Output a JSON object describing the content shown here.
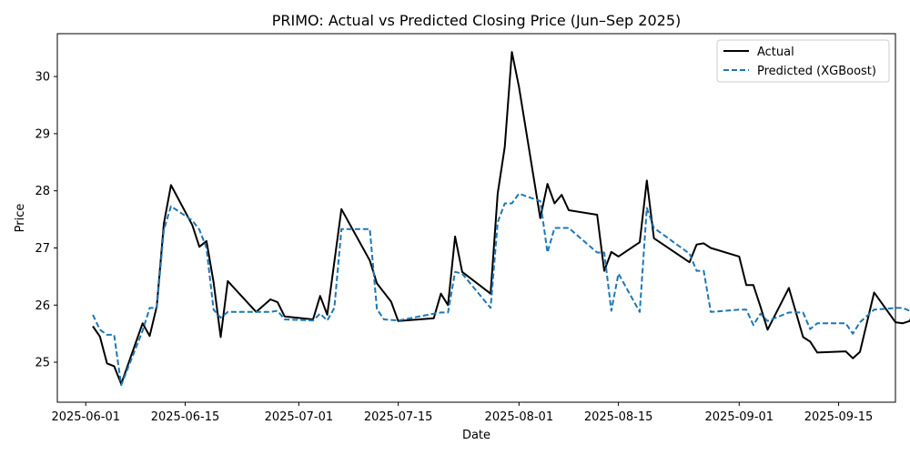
{
  "chart_data": {
    "type": "line",
    "title": "PRIMO: Actual vs Predicted Closing Price (Jun–Sep 2025)",
    "xlabel": "Date",
    "ylabel": "Price",
    "x_tick_labels": [
      "2025-06-01",
      "2025-06-15",
      "2025-07-01",
      "2025-07-15",
      "2025-08-01",
      "2025-08-15",
      "2025-09-01",
      "2025-09-15"
    ],
    "y_tick_labels": [
      "25",
      "26",
      "27",
      "28",
      "29",
      "30"
    ],
    "ylim": [
      24.3,
      30.75
    ],
    "xlim": [
      "2025-05-28",
      "2025-09-23"
    ],
    "grid": false,
    "legend_position": "top-right",
    "colors": {
      "actual": "#000000",
      "predicted": "#1f77b4"
    },
    "series": [
      {
        "name": "Actual",
        "style": "solid",
        "points": [
          [
            "2025-06-02",
            25.63
          ],
          [
            "2025-06-03",
            25.45
          ],
          [
            "2025-06-04",
            24.98
          ],
          [
            "2025-06-05",
            24.93
          ],
          [
            "2025-06-06",
            24.62
          ],
          [
            "2025-06-09",
            25.68
          ],
          [
            "2025-06-10",
            25.46
          ],
          [
            "2025-06-11",
            25.98
          ],
          [
            "2025-06-12",
            27.43
          ],
          [
            "2025-06-13",
            28.1
          ],
          [
            "2025-06-16",
            27.4
          ],
          [
            "2025-06-17",
            27.02
          ],
          [
            "2025-06-18",
            27.12
          ],
          [
            "2025-06-19",
            26.4
          ],
          [
            "2025-06-20",
            25.44
          ],
          [
            "2025-06-21",
            26.42
          ],
          [
            "2025-06-25",
            25.88
          ],
          [
            "2025-06-27",
            26.1
          ],
          [
            "2025-06-28",
            26.05
          ],
          [
            "2025-06-29",
            25.8
          ],
          [
            "2025-07-03",
            25.75
          ],
          [
            "2025-07-04",
            26.16
          ],
          [
            "2025-07-05",
            25.83
          ],
          [
            "2025-07-07",
            27.68
          ],
          [
            "2025-07-11",
            26.78
          ],
          [
            "2025-07-12",
            26.38
          ],
          [
            "2025-07-14",
            26.06
          ],
          [
            "2025-07-15",
            25.72
          ],
          [
            "2025-07-20",
            25.77
          ],
          [
            "2025-07-21",
            26.2
          ],
          [
            "2025-07-22",
            26.0
          ],
          [
            "2025-07-23",
            27.2
          ],
          [
            "2025-07-24",
            26.58
          ],
          [
            "2025-07-28",
            26.2
          ],
          [
            "2025-07-29",
            27.95
          ],
          [
            "2025-07-30",
            28.77
          ],
          [
            "2025-07-31",
            30.43
          ],
          [
            "2025-08-01",
            29.82
          ],
          [
            "2025-08-04",
            27.52
          ],
          [
            "2025-08-05",
            28.12
          ],
          [
            "2025-08-06",
            27.78
          ],
          [
            "2025-08-07",
            27.93
          ],
          [
            "2025-08-08",
            27.66
          ],
          [
            "2025-08-12",
            27.58
          ],
          [
            "2025-08-13",
            26.6
          ],
          [
            "2025-08-14",
            26.93
          ],
          [
            "2025-08-15",
            26.85
          ],
          [
            "2025-08-18",
            27.1
          ],
          [
            "2025-08-19",
            28.18
          ],
          [
            "2025-08-20",
            27.17
          ],
          [
            "2025-08-25",
            26.75
          ],
          [
            "2025-08-26",
            27.06
          ],
          [
            "2025-08-27",
            27.08
          ],
          [
            "2025-08-28",
            27.0
          ],
          [
            "2025-09-01",
            26.85
          ],
          [
            "2025-09-02",
            26.35
          ],
          [
            "2025-09-03",
            26.35
          ],
          [
            "2025-09-04",
            25.97
          ],
          [
            "2025-09-05",
            25.57
          ],
          [
            "2025-09-08",
            26.3
          ],
          [
            "2025-09-10",
            25.44
          ],
          [
            "2025-09-11",
            25.36
          ],
          [
            "2025-09-12",
            25.17
          ],
          [
            "2025-09-16",
            25.19
          ],
          [
            "2025-09-17",
            25.07
          ],
          [
            "2025-09-18",
            25.18
          ],
          [
            "2025-09-20",
            26.22
          ],
          [
            "2025-09-23",
            25.7
          ],
          [
            "2025-09-24",
            25.68
          ],
          [
            "2025-09-25",
            25.72
          ],
          [
            "2025-09-26",
            25.95
          ]
        ]
      },
      {
        "name": "Predicted (XGBoost)",
        "style": "dashed",
        "points": [
          [
            "2025-06-02",
            25.83
          ],
          [
            "2025-06-03",
            25.57
          ],
          [
            "2025-06-04",
            25.48
          ],
          [
            "2025-06-05",
            25.48
          ],
          [
            "2025-06-06",
            24.6
          ],
          [
            "2025-06-09",
            25.55
          ],
          [
            "2025-06-10",
            25.95
          ],
          [
            "2025-06-11",
            25.95
          ],
          [
            "2025-06-12",
            27.32
          ],
          [
            "2025-06-13",
            27.73
          ],
          [
            "2025-06-16",
            27.48
          ],
          [
            "2025-06-17",
            27.32
          ],
          [
            "2025-06-18",
            27.0
          ],
          [
            "2025-06-19",
            25.92
          ],
          [
            "2025-06-20",
            25.78
          ],
          [
            "2025-06-21",
            25.88
          ],
          [
            "2025-06-25",
            25.88
          ],
          [
            "2025-06-27",
            25.88
          ],
          [
            "2025-06-28",
            25.9
          ],
          [
            "2025-06-29",
            25.75
          ],
          [
            "2025-07-03",
            25.73
          ],
          [
            "2025-07-04",
            25.85
          ],
          [
            "2025-07-05",
            25.73
          ],
          [
            "2025-07-06",
            25.95
          ],
          [
            "2025-07-07",
            27.33
          ],
          [
            "2025-07-11",
            27.33
          ],
          [
            "2025-07-12",
            25.93
          ],
          [
            "2025-07-13",
            25.75
          ],
          [
            "2025-07-15",
            25.73
          ],
          [
            "2025-07-20",
            25.85
          ],
          [
            "2025-07-21",
            25.87
          ],
          [
            "2025-07-22",
            25.87
          ],
          [
            "2025-07-23",
            26.58
          ],
          [
            "2025-07-24",
            26.55
          ],
          [
            "2025-07-28",
            25.95
          ],
          [
            "2025-07-29",
            27.45
          ],
          [
            "2025-07-30",
            27.78
          ],
          [
            "2025-07-31",
            27.78
          ],
          [
            "2025-08-01",
            27.95
          ],
          [
            "2025-08-04",
            27.82
          ],
          [
            "2025-08-05",
            26.92
          ],
          [
            "2025-08-06",
            27.35
          ],
          [
            "2025-08-08",
            27.35
          ],
          [
            "2025-08-12",
            26.92
          ],
          [
            "2025-08-13",
            26.92
          ],
          [
            "2025-08-14",
            25.9
          ],
          [
            "2025-08-15",
            26.55
          ],
          [
            "2025-08-18",
            25.88
          ],
          [
            "2025-08-19",
            27.7
          ],
          [
            "2025-08-20",
            27.35
          ],
          [
            "2025-08-25",
            26.9
          ],
          [
            "2025-08-26",
            26.6
          ],
          [
            "2025-08-27",
            26.6
          ],
          [
            "2025-08-28",
            25.88
          ],
          [
            "2025-09-01",
            25.92
          ],
          [
            "2025-09-02",
            25.92
          ],
          [
            "2025-09-03",
            25.65
          ],
          [
            "2025-09-04",
            25.85
          ],
          [
            "2025-09-05",
            25.72
          ],
          [
            "2025-09-08",
            25.87
          ],
          [
            "2025-09-10",
            25.87
          ],
          [
            "2025-09-11",
            25.58
          ],
          [
            "2025-09-12",
            25.68
          ],
          [
            "2025-09-16",
            25.68
          ],
          [
            "2025-09-17",
            25.5
          ],
          [
            "2025-09-18",
            25.7
          ],
          [
            "2025-09-20",
            25.92
          ],
          [
            "2025-09-23",
            25.95
          ],
          [
            "2025-09-24",
            25.95
          ],
          [
            "2025-09-25",
            25.9
          ],
          [
            "2025-09-26",
            25.75
          ]
        ]
      }
    ]
  }
}
